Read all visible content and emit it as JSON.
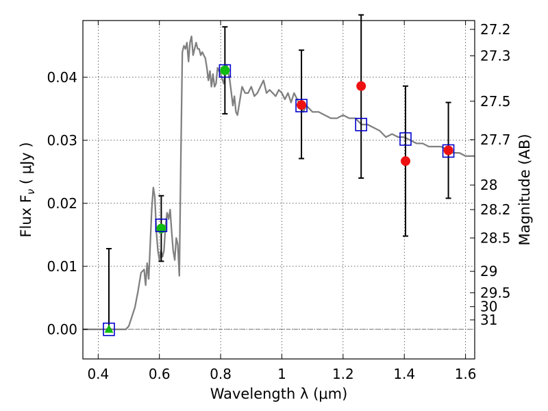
{
  "chart_data": {
    "type": "scatter",
    "xlabel": "Wavelength  λ (μm)",
    "ylabel": "Flux  F",
    "ylabel_sub": "ν",
    "ylabel_unit": " ( μJy )",
    "y2label": "Magnitude (AB)",
    "xlim": [
      0.35,
      1.63
    ],
    "ylim": [
      -0.0047,
      0.049
    ],
    "grid": true,
    "x_ticks": [
      {
        "value": 0.4,
        "label": "0.4"
      },
      {
        "value": 0.6,
        "label": "0.6"
      },
      {
        "value": 0.8,
        "label": "0.8"
      },
      {
        "value": 1.0,
        "label": "1"
      },
      {
        "value": 1.2,
        "label": "1.2"
      },
      {
        "value": 1.4,
        "label": "1.4"
      },
      {
        "value": 1.6,
        "label": "1.6"
      }
    ],
    "y_ticks": [
      {
        "value": 0.0,
        "label": "0.00"
      },
      {
        "value": 0.01,
        "label": "0.01"
      },
      {
        "value": 0.02,
        "label": "0.02"
      },
      {
        "value": 0.03,
        "label": "0.03"
      },
      {
        "value": 0.04,
        "label": "0.04"
      }
    ],
    "mag_ticks": [
      {
        "flux": 0.0476,
        "label": "27.2"
      },
      {
        "flux": 0.0434,
        "label": "27.3"
      },
      {
        "flux": 0.0362,
        "label": "27.5"
      },
      {
        "flux": 0.0301,
        "label": "27.7"
      },
      {
        "flux": 0.0229,
        "label": "28"
      },
      {
        "flux": 0.019,
        "label": "28.2"
      },
      {
        "flux": 0.0145,
        "label": "28.5"
      },
      {
        "flux": 0.0092,
        "label": "29"
      },
      {
        "flux": 0.0058,
        "label": "29.5"
      },
      {
        "flux": 0.0036,
        "label": "30"
      },
      {
        "flux": 0.0015,
        "label": "31"
      }
    ],
    "sed_model": {
      "color": "#808080",
      "x": [
        0.35,
        0.49,
        0.5,
        0.52,
        0.53,
        0.54,
        0.55,
        0.555,
        0.56,
        0.565,
        0.57,
        0.575,
        0.58,
        0.585,
        0.59,
        0.595,
        0.6,
        0.605,
        0.61,
        0.615,
        0.62,
        0.625,
        0.63,
        0.635,
        0.64,
        0.645,
        0.65,
        0.655,
        0.66,
        0.665,
        0.67,
        0.675,
        0.68,
        0.685,
        0.69,
        0.695,
        0.7,
        0.705,
        0.71,
        0.715,
        0.72,
        0.725,
        0.73,
        0.735,
        0.74,
        0.745,
        0.75,
        0.755,
        0.76,
        0.765,
        0.77,
        0.775,
        0.78,
        0.785,
        0.79,
        0.8,
        0.81,
        0.82,
        0.83,
        0.84,
        0.845,
        0.85,
        0.855,
        0.86,
        0.87,
        0.88,
        0.89,
        0.9,
        0.91,
        0.92,
        0.93,
        0.94,
        0.95,
        0.96,
        0.97,
        0.98,
        0.99,
        1.0,
        1.01,
        1.02,
        1.03,
        1.04,
        1.05,
        1.06,
        1.07,
        1.08,
        1.09,
        1.1,
        1.12,
        1.14,
        1.16,
        1.18,
        1.2,
        1.22,
        1.24,
        1.26,
        1.28,
        1.3,
        1.32,
        1.34,
        1.36,
        1.38,
        1.4,
        1.42,
        1.44,
        1.46,
        1.48,
        1.5,
        1.52,
        1.54,
        1.56,
        1.58,
        1.6,
        1.63
      ],
      "y": [
        0.0,
        0.0,
        0.0005,
        0.0035,
        0.006,
        0.009,
        0.0095,
        0.007,
        0.0105,
        0.008,
        0.0135,
        0.019,
        0.0225,
        0.021,
        0.0155,
        0.0125,
        0.011,
        0.0125,
        0.0115,
        0.0125,
        0.0165,
        0.0185,
        0.0175,
        0.019,
        0.0155,
        0.0125,
        0.011,
        0.0145,
        0.0135,
        0.0085,
        0.027,
        0.044,
        0.045,
        0.0445,
        0.0455,
        0.0425,
        0.0455,
        0.0465,
        0.0435,
        0.0445,
        0.0455,
        0.0445,
        0.0445,
        0.0435,
        0.044,
        0.0435,
        0.043,
        0.0415,
        0.0395,
        0.041,
        0.0385,
        0.0405,
        0.0385,
        0.039,
        0.0415,
        0.0405,
        0.039,
        0.042,
        0.0395,
        0.0355,
        0.037,
        0.0345,
        0.034,
        0.0355,
        0.0385,
        0.0375,
        0.0375,
        0.0385,
        0.037,
        0.0375,
        0.0385,
        0.0395,
        0.0375,
        0.038,
        0.0375,
        0.037,
        0.038,
        0.0375,
        0.0365,
        0.0375,
        0.036,
        0.0375,
        0.0365,
        0.0355,
        0.0345,
        0.0355,
        0.035,
        0.0345,
        0.0345,
        0.034,
        0.0335,
        0.0335,
        0.034,
        0.0335,
        0.0335,
        0.0325,
        0.0325,
        0.032,
        0.0315,
        0.0305,
        0.031,
        0.0305,
        0.0305,
        0.03,
        0.0295,
        0.0295,
        0.029,
        0.029,
        0.029,
        0.0285,
        0.028,
        0.028,
        0.0275,
        0.0275
      ]
    },
    "series": [
      {
        "name": "model_band_flux",
        "marker": "open-square",
        "color": "#0000cc",
        "x": [
          0.435,
          0.606,
          0.814,
          1.064,
          1.259,
          1.404,
          1.544
        ],
        "y": [
          0.0,
          0.0165,
          0.041,
          0.0355,
          0.0325,
          0.0302,
          0.0283
        ]
      },
      {
        "name": "detections",
        "marker": "circle",
        "color": "#11bb11",
        "x": [
          0.606,
          0.814
        ],
        "y": [
          0.016,
          0.0411
        ],
        "yerr_low": [
          0.0108,
          0.0342
        ],
        "yerr_high": [
          0.0212,
          0.048
        ]
      },
      {
        "name": "upper_limit",
        "marker": "triangle",
        "color": "#11bb11",
        "x": [
          0.435
        ],
        "y": [
          0.0
        ],
        "yerr_low": [
          0.0
        ],
        "yerr_high": [
          0.0128
        ]
      },
      {
        "name": "nir_points",
        "marker": "circle",
        "color": "#ee1111",
        "x": [
          1.064,
          1.259,
          1.404,
          1.544
        ],
        "y": [
          0.0356,
          0.0386,
          0.0267,
          0.0284
        ],
        "yerr_low": [
          0.0271,
          0.024,
          0.0148,
          0.0208
        ],
        "yerr_high": [
          0.0443,
          0.0499,
          0.0386,
          0.036
        ]
      }
    ]
  }
}
